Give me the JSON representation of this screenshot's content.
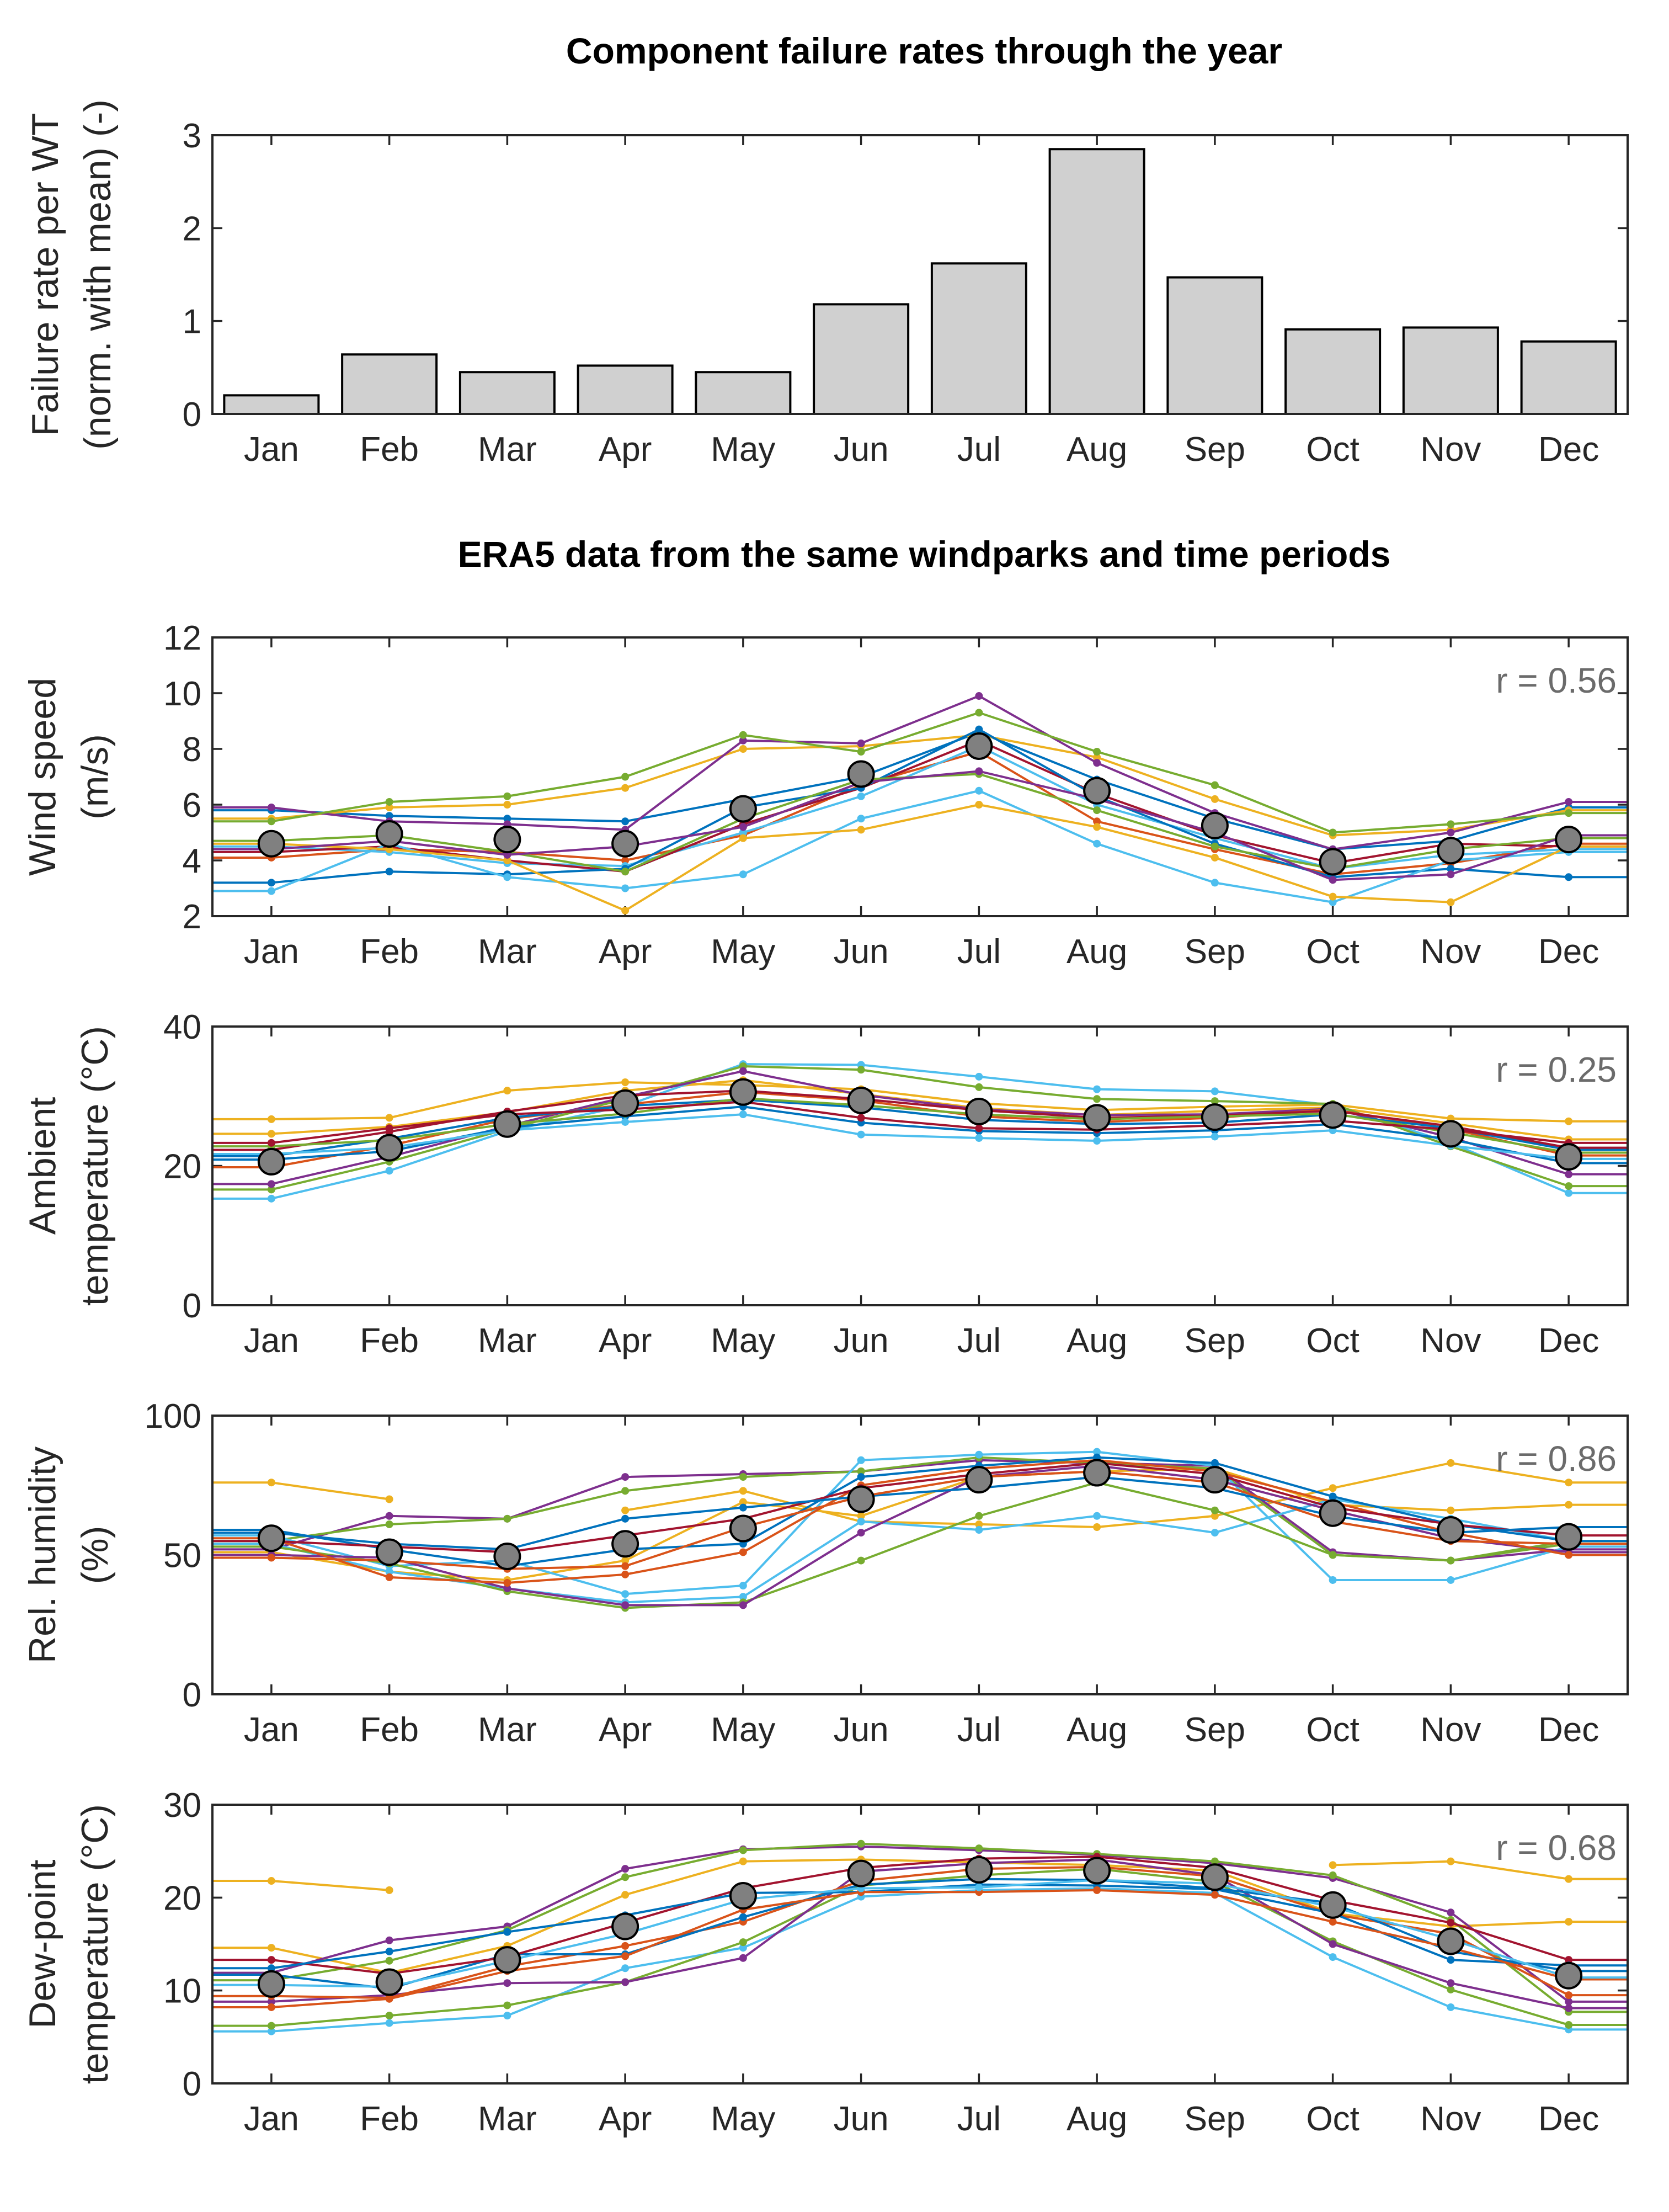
{
  "months": [
    "Jan",
    "Feb",
    "Mar",
    "Apr",
    "May",
    "Jun",
    "Jul",
    "Aug",
    "Sep",
    "Oct",
    "Nov",
    "Dec"
  ],
  "colors": [
    "#0072bd",
    "#d95319",
    "#edb120",
    "#7e2f8e",
    "#77ac30",
    "#4dbeee",
    "#a2142f"
  ],
  "mean_marker_color": "#808080",
  "chart_data": [
    {
      "type": "bar",
      "title": "Component failure rates through the year",
      "ylabel": [
        "Failure rate per WT",
        "(norm. with mean) (-)"
      ],
      "categories": [
        "Jan",
        "Feb",
        "Mar",
        "Apr",
        "May",
        "Jun",
        "Jul",
        "Aug",
        "Sep",
        "Oct",
        "Nov",
        "Dec"
      ],
      "values": [
        0.2,
        0.64,
        0.45,
        0.52,
        0.45,
        1.18,
        1.62,
        2.85,
        1.47,
        0.91,
        0.93,
        0.78
      ],
      "ylim": [
        0,
        3
      ],
      "yticks": [
        0,
        1,
        2,
        3
      ]
    },
    {
      "type": "line",
      "section_title": "ERA5 data from the same windparks and time periods",
      "ylabel": [
        "Wind speed",
        "(m/s)"
      ],
      "r_label": "r = 0.56",
      "ylim": [
        2,
        12
      ],
      "yticks": [
        2,
        4,
        6,
        8,
        10,
        12
      ],
      "mean": [
        4.6,
        4.95,
        4.75,
        4.6,
        5.85,
        7.1,
        8.1,
        6.5,
        5.25,
        3.95,
        4.35,
        4.75
      ],
      "series": [
        {
          "color": "#0072bd",
          "values": [
            5.8,
            5.6,
            5.5,
            5.4,
            6.2,
            7.0,
            8.6,
            6.9,
            5.5,
            4.4,
            4.7,
            5.9
          ]
        },
        {
          "color": "#d95319",
          "values": [
            4.1,
            4.4,
            4.3,
            4.0,
            4.9,
            6.7,
            7.9,
            5.4,
            4.4,
            3.5,
            3.9,
            4.6
          ]
        },
        {
          "color": "#edb120",
          "values": [
            5.5,
            5.9,
            6.0,
            6.6,
            8.0,
            8.1,
            8.5,
            7.7,
            6.2,
            4.9,
            5.1,
            5.8
          ]
        },
        {
          "color": "#7e2f8e",
          "values": [
            5.9,
            5.4,
            5.3,
            5.1,
            8.3,
            8.2,
            9.9,
            7.5,
            5.7,
            4.4,
            5.0,
            6.1
          ]
        },
        {
          "color": "#77ac30",
          "values": [
            5.4,
            6.1,
            6.3,
            7.0,
            8.5,
            7.9,
            9.3,
            7.9,
            6.7,
            5.0,
            5.3,
            5.7
          ]
        },
        {
          "color": "#4dbeee",
          "values": [
            4.5,
            4.3,
            3.9,
            3.8,
            5.0,
            6.3,
            8.1,
            6.0,
            4.8,
            3.7,
            4.2,
            4.4
          ]
        },
        {
          "color": "#a2142f",
          "values": [
            4.3,
            4.5,
            4.0,
            3.6,
            5.3,
            6.6,
            8.3,
            6.4,
            4.9,
            3.9,
            4.6,
            4.5
          ]
        },
        {
          "color": "#0072bd",
          "values": [
            3.2,
            3.6,
            3.5,
            3.7,
            5.9,
            6.6,
            8.7,
            6.3,
            4.6,
            3.4,
            3.7,
            3.4
          ]
        },
        {
          "color": "#4dbeee",
          "values": [
            2.9,
            4.6,
            3.4,
            3.0,
            3.5,
            5.5,
            6.5,
            4.6,
            3.2,
            2.5,
            4.0,
            4.3
          ]
        },
        {
          "color": "#edb120",
          "values": [
            4.6,
            4.4,
            4.0,
            2.2,
            4.8,
            5.1,
            6.0,
            5.2,
            4.1,
            2.7,
            2.5,
            4.5
          ]
        },
        {
          "color": "#77ac30",
          "values": [
            4.7,
            4.9,
            4.3,
            3.6,
            5.5,
            6.9,
            7.1,
            5.8,
            4.5,
            3.7,
            4.4,
            4.8
          ]
        },
        {
          "color": "#7e2f8e",
          "values": [
            4.4,
            4.7,
            4.2,
            4.5,
            5.2,
            6.8,
            7.2,
            6.2,
            5.0,
            3.3,
            3.5,
            4.9
          ]
        }
      ]
    },
    {
      "type": "line",
      "ylabel": [
        "Ambient",
        "temperature (°C)"
      ],
      "r_label": "r = 0.25",
      "ylim": [
        0,
        40
      ],
      "yticks": [
        0,
        20,
        40
      ],
      "mean": [
        20.6,
        22.6,
        26.0,
        29.0,
        30.6,
        29.4,
        27.8,
        26.9,
        27.0,
        27.3,
        24.6,
        21.3
      ],
      "series": [
        {
          "color": "#edb120",
          "values": [
            26.7,
            26.9,
            30.8,
            32.0,
            31.6,
            31.0,
            29.0,
            28.0,
            28.5,
            28.8,
            26.8,
            26.4
          ]
        },
        {
          "color": "#edb120",
          "values": [
            24.6,
            25.6,
            27.7,
            30.8,
            32.3,
            30.3,
            28.3,
            27.3,
            27.9,
            28.4,
            26.1,
            23.8
          ]
        },
        {
          "color": "#4dbeee",
          "values": [
            15.3,
            19.3,
            25.0,
            28.6,
            34.6,
            34.5,
            32.8,
            31.0,
            30.7,
            28.7,
            23.3,
            16.1
          ]
        },
        {
          "color": "#77ac30",
          "values": [
            16.6,
            20.6,
            25.3,
            29.6,
            34.3,
            33.8,
            31.3,
            29.6,
            29.3,
            28.9,
            22.8,
            17.1
          ]
        },
        {
          "color": "#7e2f8e",
          "values": [
            17.4,
            21.3,
            25.7,
            29.9,
            33.6,
            30.2,
            28.1,
            27.3,
            27.4,
            28.2,
            24.1,
            18.8
          ]
        },
        {
          "color": "#d95319",
          "values": [
            19.8,
            22.9,
            26.7,
            28.8,
            30.6,
            29.4,
            27.1,
            26.3,
            26.9,
            28.1,
            25.3,
            21.5
          ]
        },
        {
          "color": "#0072bd",
          "values": [
            21.4,
            23.9,
            26.9,
            28.6,
            29.5,
            28.4,
            26.6,
            26.0,
            26.2,
            27.4,
            25.4,
            22.3
          ]
        },
        {
          "color": "#a2142f",
          "values": [
            22.3,
            24.9,
            27.8,
            30.1,
            30.8,
            29.6,
            28.0,
            26.9,
            27.2,
            27.9,
            25.7,
            22.6
          ]
        },
        {
          "color": "#0072bd",
          "values": [
            20.9,
            22.1,
            25.5,
            27.1,
            28.5,
            26.2,
            25.0,
            24.7,
            25.1,
            26.0,
            23.8,
            20.4
          ]
        },
        {
          "color": "#4dbeee",
          "values": [
            21.7,
            22.6,
            25.1,
            26.3,
            27.4,
            24.5,
            24.0,
            23.6,
            24.2,
            25.1,
            22.9,
            21.0
          ]
        },
        {
          "color": "#77ac30",
          "values": [
            22.8,
            23.7,
            26.0,
            27.5,
            29.7,
            28.7,
            27.4,
            26.7,
            27.1,
            27.5,
            24.8,
            21.9
          ]
        },
        {
          "color": "#a2142f",
          "values": [
            23.3,
            25.4,
            27.4,
            28.1,
            29.2,
            26.9,
            25.4,
            25.2,
            25.8,
            26.5,
            25.2,
            23.3
          ]
        }
      ]
    },
    {
      "type": "line",
      "ylabel": [
        "Rel. humidity",
        "(%)"
      ],
      "r_label": "r = 0.86",
      "ylim": [
        0,
        100
      ],
      "yticks": [
        0,
        50,
        100
      ],
      "mean": [
        56,
        51,
        49.5,
        54,
        59.5,
        70,
        77,
        79.5,
        77,
        65,
        59,
        56.5
      ],
      "series": [
        {
          "color": "#edb120",
          "values": [
            76,
            70,
            null,
            66,
            73,
            62,
            61,
            60,
            64,
            74,
            83,
            76
          ]
        },
        {
          "color": "#edb120",
          "values": [
            51,
            44,
            41,
            48,
            69,
            64,
            78,
            80,
            81,
            68,
            66,
            68
          ]
        },
        {
          "color": "#7e2f8e",
          "values": [
            52,
            64,
            63,
            78,
            79,
            80,
            84,
            83,
            82,
            51,
            48,
            52
          ]
        },
        {
          "color": "#77ac30",
          "values": [
            55,
            61,
            63,
            73,
            78,
            80,
            85,
            83,
            81,
            50,
            48,
            54
          ]
        },
        {
          "color": "#4dbeee",
          "values": [
            57,
            46,
            48,
            36,
            39,
            84,
            86,
            87,
            82,
            41,
            41,
            53
          ]
        },
        {
          "color": "#4dbeee",
          "values": [
            54,
            44,
            38,
            33,
            35,
            62,
            59,
            64,
            58,
            70,
            63,
            55
          ]
        },
        {
          "color": "#77ac30",
          "values": [
            53,
            47,
            37,
            31,
            33,
            48,
            64,
            76,
            66,
            50,
            48,
            55
          ]
        },
        {
          "color": "#7e2f8e",
          "values": [
            50,
            49,
            38,
            32,
            32,
            58,
            78,
            82,
            77,
            66,
            56,
            51
          ]
        },
        {
          "color": "#d95319",
          "values": [
            56,
            42,
            40,
            43,
            51,
            75,
            81,
            84,
            80,
            69,
            58,
            50
          ]
        },
        {
          "color": "#0072bd",
          "values": [
            59,
            52,
            46,
            52,
            54,
            78,
            82,
            85,
            83,
            71,
            61,
            55
          ]
        },
        {
          "color": "#a2142f",
          "values": [
            55,
            53,
            51,
            57,
            63,
            74,
            79,
            83,
            79,
            67,
            61,
            57
          ]
        },
        {
          "color": "#0072bd",
          "values": [
            58,
            54,
            52,
            63,
            67,
            71,
            74,
            78,
            74,
            64,
            58,
            60
          ]
        },
        {
          "color": "#d95319",
          "values": [
            49,
            48,
            45,
            46,
            60,
            71,
            78,
            80,
            76,
            62,
            55,
            54
          ]
        }
      ]
    },
    {
      "type": "line",
      "ylabel": [
        "Dew-point",
        "temperature (°C)"
      ],
      "r_label": "r = 0.68",
      "ylim": [
        0,
        30
      ],
      "yticks": [
        0,
        10,
        20,
        30
      ],
      "mean": [
        10.7,
        10.9,
        13.3,
        16.9,
        20.2,
        22.6,
        23.0,
        22.9,
        22.2,
        19.2,
        15.3,
        11.6
      ],
      "series": [
        {
          "color": "#edb120",
          "values": [
            21.8,
            20.8,
            null,
            null,
            null,
            null,
            null,
            null,
            null,
            23.5,
            23.9,
            22.0
          ]
        },
        {
          "color": "#edb120",
          "values": [
            14.6,
            11.9,
            14.8,
            20.3,
            23.9,
            24.1,
            23.8,
            23.5,
            22.9,
            18.3,
            16.9,
            17.4
          ]
        },
        {
          "color": "#7e2f8e",
          "values": [
            11.9,
            15.4,
            16.9,
            23.1,
            25.2,
            25.5,
            25.1,
            24.6,
            23.7,
            22.1,
            18.4,
            8.8
          ]
        },
        {
          "color": "#77ac30",
          "values": [
            11.1,
            13.2,
            16.5,
            22.2,
            25.1,
            25.8,
            25.3,
            24.7,
            23.9,
            22.4,
            17.6,
            7.7
          ]
        },
        {
          "color": "#4dbeee",
          "values": [
            5.6,
            6.5,
            7.3,
            12.4,
            14.6,
            20.1,
            20.8,
            21.0,
            20.5,
            13.6,
            8.2,
            5.8
          ]
        },
        {
          "color": "#77ac30",
          "values": [
            6.2,
            7.3,
            8.4,
            10.9,
            15.2,
            21.3,
            22.4,
            23.1,
            21.7,
            15.3,
            10.1,
            6.3
          ]
        },
        {
          "color": "#7e2f8e",
          "values": [
            8.8,
            9.5,
            10.8,
            10.9,
            13.5,
            22.8,
            23.7,
            24.1,
            22.4,
            15.0,
            10.8,
            8.1
          ]
        },
        {
          "color": "#d95319",
          "values": [
            9.4,
            9.2,
            12.6,
            14.8,
            17.4,
            21.8,
            23.1,
            23.3,
            22.3,
            18.2,
            16.1,
            9.5
          ]
        },
        {
          "color": "#0072bd",
          "values": [
            11.7,
            10.2,
            13.9,
            13.9,
            17.9,
            21.4,
            22.0,
            21.9,
            21.0,
            19.4,
            14.2,
            12.1
          ]
        },
        {
          "color": "#a2142f",
          "values": [
            13.3,
            11.8,
            13.6,
            17.3,
            21.0,
            23.2,
            24.2,
            24.4,
            23.2,
            19.7,
            17.3,
            13.3
          ]
        },
        {
          "color": "#0072bd",
          "values": [
            12.4,
            14.2,
            16.3,
            18.1,
            20.5,
            20.6,
            21.4,
            21.3,
            20.9,
            18.3,
            13.3,
            12.7
          ]
        },
        {
          "color": "#d95319",
          "values": [
            8.2,
            9.1,
            12.1,
            13.7,
            18.7,
            20.6,
            20.6,
            20.8,
            20.3,
            17.4,
            14.6,
            11.2
          ]
        },
        {
          "color": "#4dbeee",
          "values": [
            10.6,
            10.4,
            13.2,
            16.1,
            19.8,
            21.0,
            21.1,
            21.9,
            21.5,
            19.0,
            15.5,
            11.4
          ]
        }
      ]
    }
  ]
}
